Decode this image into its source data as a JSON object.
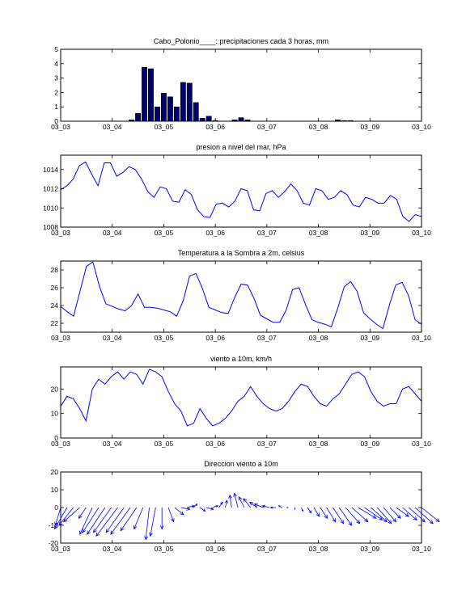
{
  "chart_data": [
    {
      "type": "bar",
      "title": "Cabo_Polonio____: precipitaciones cada 3 horas, mm",
      "x_ticks": [
        "03_03",
        "03_04",
        "03_05",
        "03_06",
        "03_07",
        "03_08",
        "03_09",
        "03_10"
      ],
      "ylim": [
        0,
        5
      ],
      "y_ticks": [
        0,
        1,
        2,
        3,
        4,
        5
      ],
      "color": "#000066",
      "x": [
        1.375,
        1.5,
        1.625,
        1.75,
        1.875,
        2.0,
        2.125,
        2.25,
        2.375,
        2.5,
        2.625,
        2.75,
        2.875,
        3.0,
        3.375,
        3.5,
        3.625,
        5.375,
        5.5,
        5.625
      ],
      "values": [
        0.1,
        0.55,
        3.75,
        3.65,
        1.0,
        1.95,
        1.7,
        1.0,
        2.7,
        2.65,
        1.3,
        0.2,
        0.35,
        0.05,
        0.1,
        0.25,
        0.1,
        0.1,
        0.05,
        0.05
      ]
    },
    {
      "type": "line",
      "title": "presion a nivel del mar, hPa",
      "x_ticks": [
        "03_03",
        "03_04",
        "03_05",
        "03_06",
        "03_07",
        "03_08",
        "03_09",
        "03_10"
      ],
      "ylim": [
        1008,
        1015.5
      ],
      "y_ticks": [
        1008,
        1010,
        1012,
        1014
      ],
      "color": "#0000ff",
      "values": [
        1011.9,
        1012.3,
        1013.0,
        1014.4,
        1014.8,
        1013.5,
        1012.3,
        1014.7,
        1014.7,
        1013.3,
        1013.7,
        1014.3,
        1014.0,
        1013.0,
        1011.7,
        1011.1,
        1012.2,
        1012.0,
        1010.7,
        1010.6,
        1011.9,
        1011.4,
        1009.8,
        1009.1,
        1009.0,
        1010.4,
        1010.5,
        1010.1,
        1010.7,
        1012.0,
        1011.8,
        1009.8,
        1009.7,
        1011.5,
        1011.8,
        1011.1,
        1011.7,
        1012.5,
        1011.8,
        1010.5,
        1010.3,
        1012.0,
        1011.8,
        1010.9,
        1011.1,
        1011.8,
        1011.4,
        1010.3,
        1010.1,
        1011.1,
        1010.9,
        1010.5,
        1010.5,
        1011.3,
        1010.9,
        1009.1,
        1008.6,
        1009.3,
        1009.1
      ]
    },
    {
      "type": "line",
      "title": "Temperatura a la Sombra a 2m, celsius",
      "x_ticks": [
        "03_03",
        "03_04",
        "03_05",
        "03_06",
        "03_07",
        "03_08",
        "03_09",
        "03_10"
      ],
      "ylim": [
        21,
        29
      ],
      "y_ticks": [
        22,
        24,
        26,
        28
      ],
      "color": "#0000ff",
      "values": [
        23.9,
        23.3,
        22.8,
        25.6,
        28.4,
        28.9,
        26.2,
        24.2,
        23.9,
        23.6,
        23.4,
        24.0,
        25.3,
        23.8,
        23.8,
        23.7,
        23.5,
        23.3,
        22.8,
        24.5,
        27.3,
        27.6,
        25.9,
        23.8,
        23.5,
        23.2,
        23.1,
        24.9,
        26.4,
        26.3,
        24.8,
        22.9,
        22.5,
        22.1,
        22.1,
        23.5,
        25.8,
        26.0,
        24.1,
        22.4,
        22.1,
        21.9,
        21.6,
        23.7,
        26.1,
        26.7,
        25.6,
        23.2,
        22.5,
        21.9,
        21.4,
        24.0,
        26.3,
        26.6,
        25.1,
        22.4,
        21.9
      ]
    },
    {
      "type": "line",
      "title": "viento a 10m, km/h",
      "x_ticks": [
        "03_03",
        "03_04",
        "03_05",
        "03_06",
        "03_07",
        "03_08",
        "03_09",
        "03_10"
      ],
      "ylim": [
        0,
        29
      ],
      "y_ticks": [
        0,
        10,
        20
      ],
      "color": "#0000ff",
      "values": [
        13,
        17,
        16,
        12,
        7,
        20,
        24,
        22,
        25,
        27,
        24,
        27,
        26,
        22,
        28,
        27,
        25,
        19,
        14,
        11,
        5,
        6,
        12,
        8,
        5,
        6,
        8,
        11,
        15,
        17,
        21,
        17,
        14,
        12,
        11,
        12,
        15,
        19,
        22,
        21,
        17,
        14,
        13,
        16,
        18,
        22,
        26,
        27,
        25,
        19,
        15,
        13,
        14,
        14,
        20,
        21,
        18,
        15
      ]
    },
    {
      "type": "quiver",
      "title": "Direccion viento a 10m",
      "x_ticks": [
        "03_03",
        "03_04",
        "03_05",
        "03_06",
        "03_07",
        "03_08",
        "03_09",
        "03_10"
      ],
      "ylim": [
        -20,
        20
      ],
      "y_ticks": [
        -20,
        -10,
        0,
        10,
        20
      ],
      "color": "#0000ff",
      "u": [
        -3,
        -7,
        -8,
        -9,
        -4,
        -7,
        -9,
        -10,
        -10,
        -12,
        -10,
        -11,
        -9,
        -5,
        -2,
        -3,
        0,
        3,
        5,
        5,
        4,
        2,
        3,
        4,
        3,
        2,
        1,
        -1,
        -2,
        -3,
        -4,
        -4,
        -5,
        -4,
        -3,
        -2,
        -1,
        0,
        1,
        2,
        3,
        4,
        5,
        6,
        7,
        8,
        9,
        10,
        10,
        9,
        8,
        7,
        6,
        7,
        8,
        9,
        10,
        10
      ],
      "v": [
        -10,
        -12,
        -10,
        -8,
        -6,
        -15,
        -14,
        -15,
        -14,
        -16,
        -14,
        -15,
        -13,
        -12,
        -18,
        -16,
        -12,
        -8,
        -4,
        -1,
        1,
        2,
        -2,
        -1,
        1,
        3,
        4,
        7,
        8,
        6,
        5,
        3,
        2,
        1,
        0,
        1,
        0,
        -1,
        -2,
        -3,
        -5,
        -6,
        -8,
        -9,
        -10,
        -9,
        -8,
        -6,
        -7,
        -8,
        -9,
        -8,
        -6,
        -5,
        -7,
        -8,
        -9,
        -8
      ]
    }
  ]
}
